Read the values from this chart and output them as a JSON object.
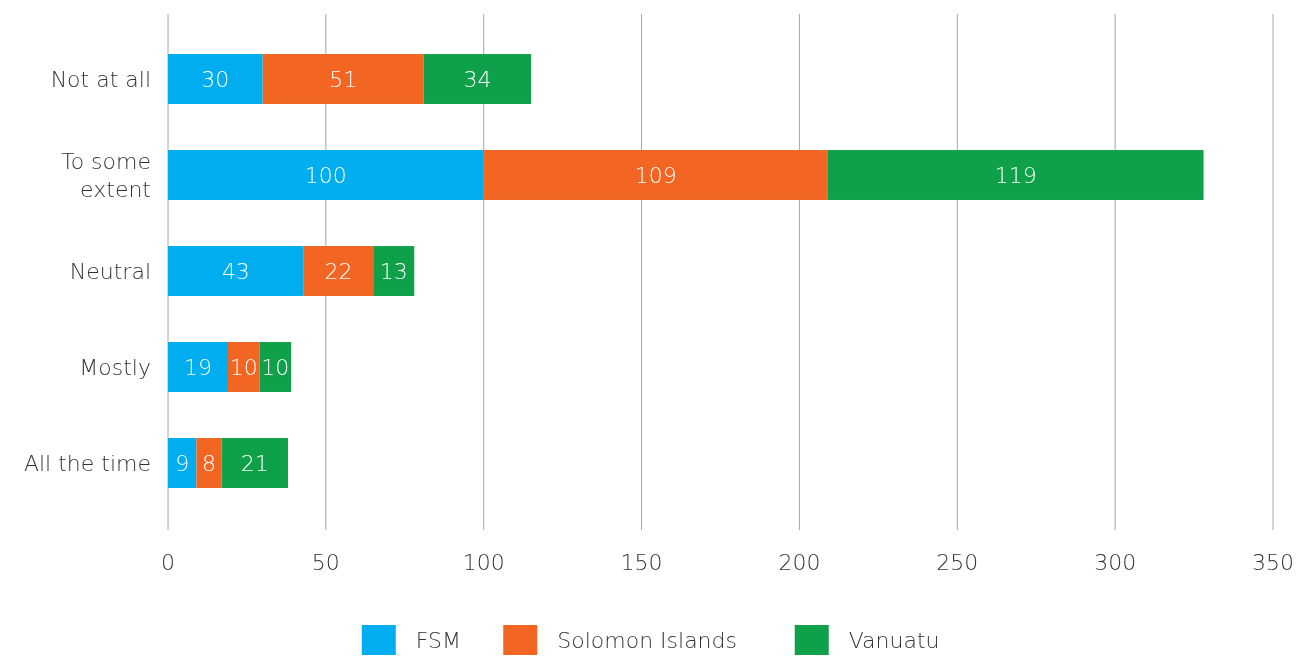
{
  "chart_data": {
    "type": "bar",
    "orientation": "horizontal",
    "stacked": true,
    "categories": [
      "Not at all",
      "To some extent",
      "Neutral",
      "Mostly",
      "All the time"
    ],
    "series": [
      {
        "name": "FSM",
        "color": "#00aeef",
        "values": [
          30,
          100,
          43,
          19,
          9
        ]
      },
      {
        "name": "Solomon Islands",
        "color": "#f26522",
        "values": [
          51,
          109,
          22,
          10,
          8
        ]
      },
      {
        "name": "Vanuatu",
        "color": "#0fa14a",
        "values": [
          34,
          119,
          13,
          10,
          21
        ]
      }
    ],
    "xlim": [
      0,
      350
    ],
    "xticks": [
      0,
      50,
      100,
      150,
      200,
      250,
      300,
      350
    ],
    "grid": "x",
    "legend": "bottom",
    "data_labels": true
  }
}
